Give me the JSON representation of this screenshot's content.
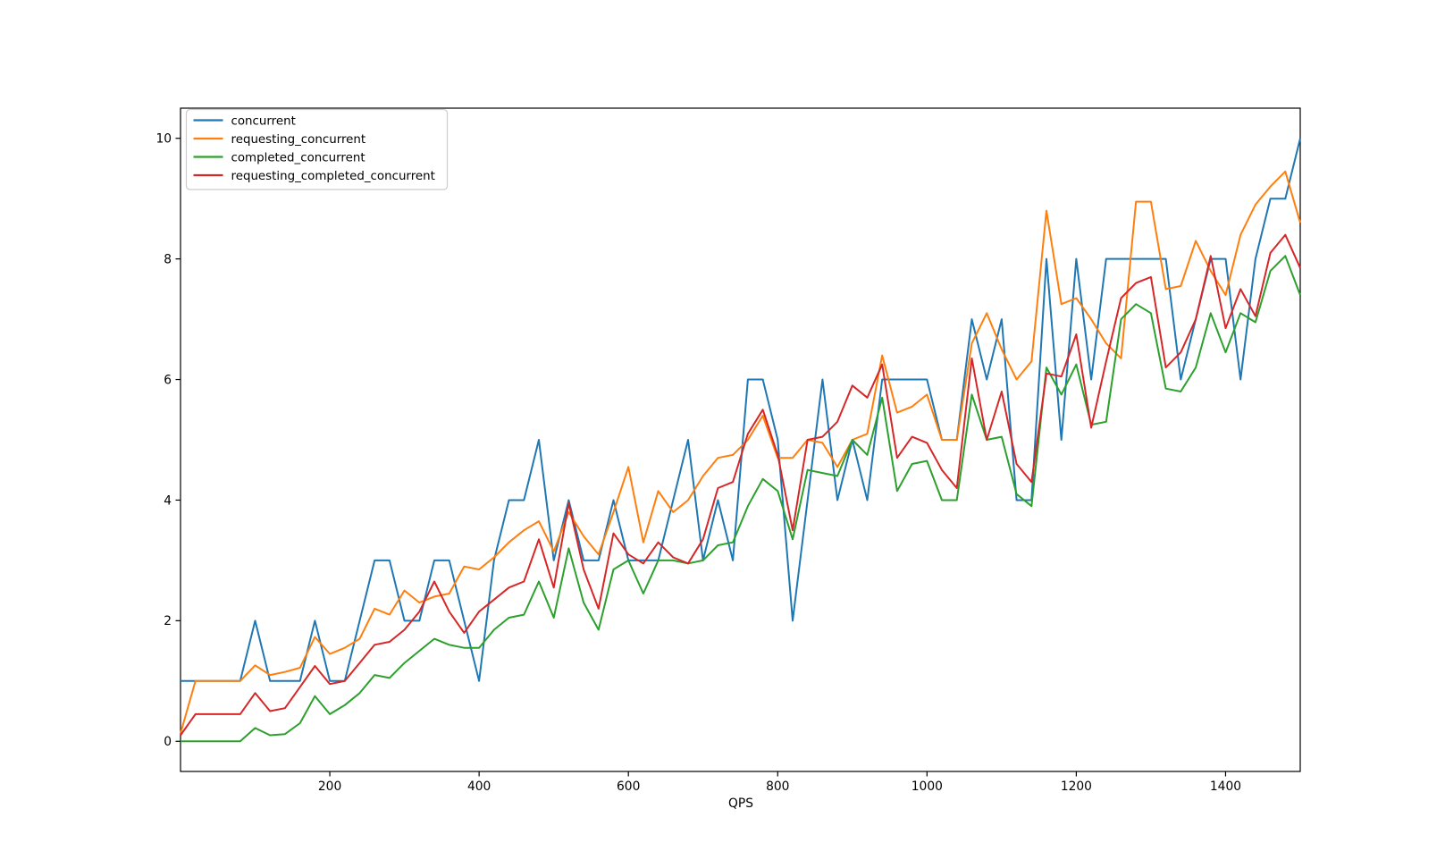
{
  "chart_data": {
    "type": "line",
    "title": "",
    "xlabel": "QPS",
    "ylabel": "",
    "xlim": [
      0,
      1500
    ],
    "ylim": [
      -0.5,
      10.5
    ],
    "x_ticks": [
      200,
      400,
      600,
      800,
      1000,
      1200,
      1400
    ],
    "y_ticks": [
      0,
      2,
      4,
      6,
      8,
      10
    ],
    "grid": false,
    "legend_position": "upper-left",
    "background_color": "#ffffff",
    "spine_color": "#000000",
    "legend_border_color": "#cccccc",
    "x": [
      0,
      20,
      40,
      60,
      80,
      100,
      120,
      140,
      160,
      180,
      200,
      220,
      240,
      260,
      280,
      300,
      320,
      340,
      360,
      380,
      400,
      420,
      440,
      460,
      480,
      500,
      520,
      540,
      560,
      580,
      600,
      620,
      640,
      660,
      680,
      700,
      720,
      740,
      760,
      780,
      800,
      820,
      840,
      860,
      880,
      900,
      920,
      940,
      960,
      980,
      1000,
      1020,
      1040,
      1060,
      1080,
      1100,
      1120,
      1140,
      1160,
      1180,
      1200,
      1220,
      1240,
      1260,
      1280,
      1300,
      1320,
      1340,
      1360,
      1380,
      1400,
      1420,
      1440,
      1460,
      1480,
      1500
    ],
    "series": [
      {
        "name": "concurrent",
        "color": "#1f77b4",
        "values": [
          1,
          1,
          1,
          1,
          1,
          2,
          1,
          1,
          1,
          2,
          1,
          1,
          2,
          3,
          3,
          2,
          2,
          3,
          3,
          2,
          1,
          3,
          4,
          4,
          5,
          3,
          4,
          3,
          3,
          4,
          3,
          3,
          3,
          4,
          5,
          3,
          4,
          3,
          6,
          6,
          5,
          2,
          4,
          6,
          4,
          5,
          4,
          6,
          6,
          6,
          6,
          5,
          5,
          7,
          6,
          7,
          4,
          4,
          8,
          5,
          8,
          6,
          8,
          8,
          8,
          8,
          8,
          6,
          7,
          8,
          8,
          6,
          8,
          9,
          9,
          10
        ]
      },
      {
        "name": "requesting_concurrent",
        "color": "#ff7f0e",
        "values": [
          0.13,
          1.0,
          1.0,
          1.0,
          1.0,
          1.26,
          1.1,
          1.15,
          1.22,
          1.73,
          1.45,
          1.55,
          1.7,
          2.2,
          2.1,
          2.5,
          2.3,
          2.4,
          2.45,
          2.9,
          2.85,
          3.05,
          3.3,
          3.5,
          3.65,
          3.15,
          3.8,
          3.4,
          3.1,
          3.8,
          4.55,
          3.3,
          4.15,
          3.8,
          4.0,
          4.4,
          4.7,
          4.75,
          5.0,
          5.4,
          4.7,
          4.7,
          5.0,
          4.95,
          4.55,
          5.0,
          5.1,
          6.4,
          5.45,
          5.55,
          5.75,
          5.0,
          5.0,
          6.6,
          7.1,
          6.5,
          6.0,
          6.3,
          8.8,
          7.25,
          7.35,
          7.0,
          6.6,
          6.35,
          8.95,
          8.95,
          7.5,
          7.55,
          8.3,
          7.8,
          7.4,
          8.4,
          8.9,
          9.2,
          9.45,
          8.6
        ]
      },
      {
        "name": "completed_concurrent",
        "color": "#2ca02c",
        "values": [
          0,
          0,
          0,
          0,
          0,
          0.22,
          0.1,
          0.12,
          0.3,
          0.75,
          0.45,
          0.6,
          0.8,
          1.1,
          1.05,
          1.3,
          1.5,
          1.7,
          1.6,
          1.55,
          1.55,
          1.85,
          2.05,
          2.1,
          2.65,
          2.05,
          3.2,
          2.3,
          1.85,
          2.85,
          3.0,
          2.45,
          3.0,
          3.0,
          2.95,
          3.0,
          3.25,
          3.3,
          3.9,
          4.35,
          4.15,
          3.35,
          4.5,
          4.45,
          4.4,
          5.0,
          4.75,
          5.7,
          4.15,
          4.6,
          4.65,
          4.0,
          4.0,
          5.75,
          5.0,
          5.05,
          4.1,
          3.9,
          6.2,
          5.75,
          6.25,
          5.25,
          5.3,
          7.0,
          7.25,
          7.1,
          5.85,
          5.8,
          6.2,
          7.1,
          6.45,
          7.1,
          6.95,
          7.8,
          8.05,
          7.4
        ]
      },
      {
        "name": "requesting_completed_concurrent",
        "color": "#d62728",
        "values": [
          0.1,
          0.45,
          0.45,
          0.45,
          0.45,
          0.8,
          0.5,
          0.55,
          0.9,
          1.25,
          0.95,
          1.0,
          1.3,
          1.6,
          1.65,
          1.85,
          2.15,
          2.65,
          2.15,
          1.8,
          2.15,
          2.35,
          2.55,
          2.65,
          3.35,
          2.55,
          3.95,
          2.85,
          2.2,
          3.45,
          3.1,
          2.95,
          3.3,
          3.05,
          2.95,
          3.35,
          4.2,
          4.3,
          5.1,
          5.5,
          4.75,
          3.5,
          5.0,
          5.05,
          5.3,
          5.9,
          5.7,
          6.25,
          4.7,
          5.05,
          4.95,
          4.5,
          4.2,
          6.35,
          5.0,
          5.8,
          4.6,
          4.3,
          6.1,
          6.05,
          6.75,
          5.2,
          6.3,
          7.35,
          7.6,
          7.7,
          6.2,
          6.45,
          7.0,
          8.05,
          6.85,
          7.5,
          7.05,
          8.1,
          8.4,
          7.85
        ]
      }
    ]
  }
}
